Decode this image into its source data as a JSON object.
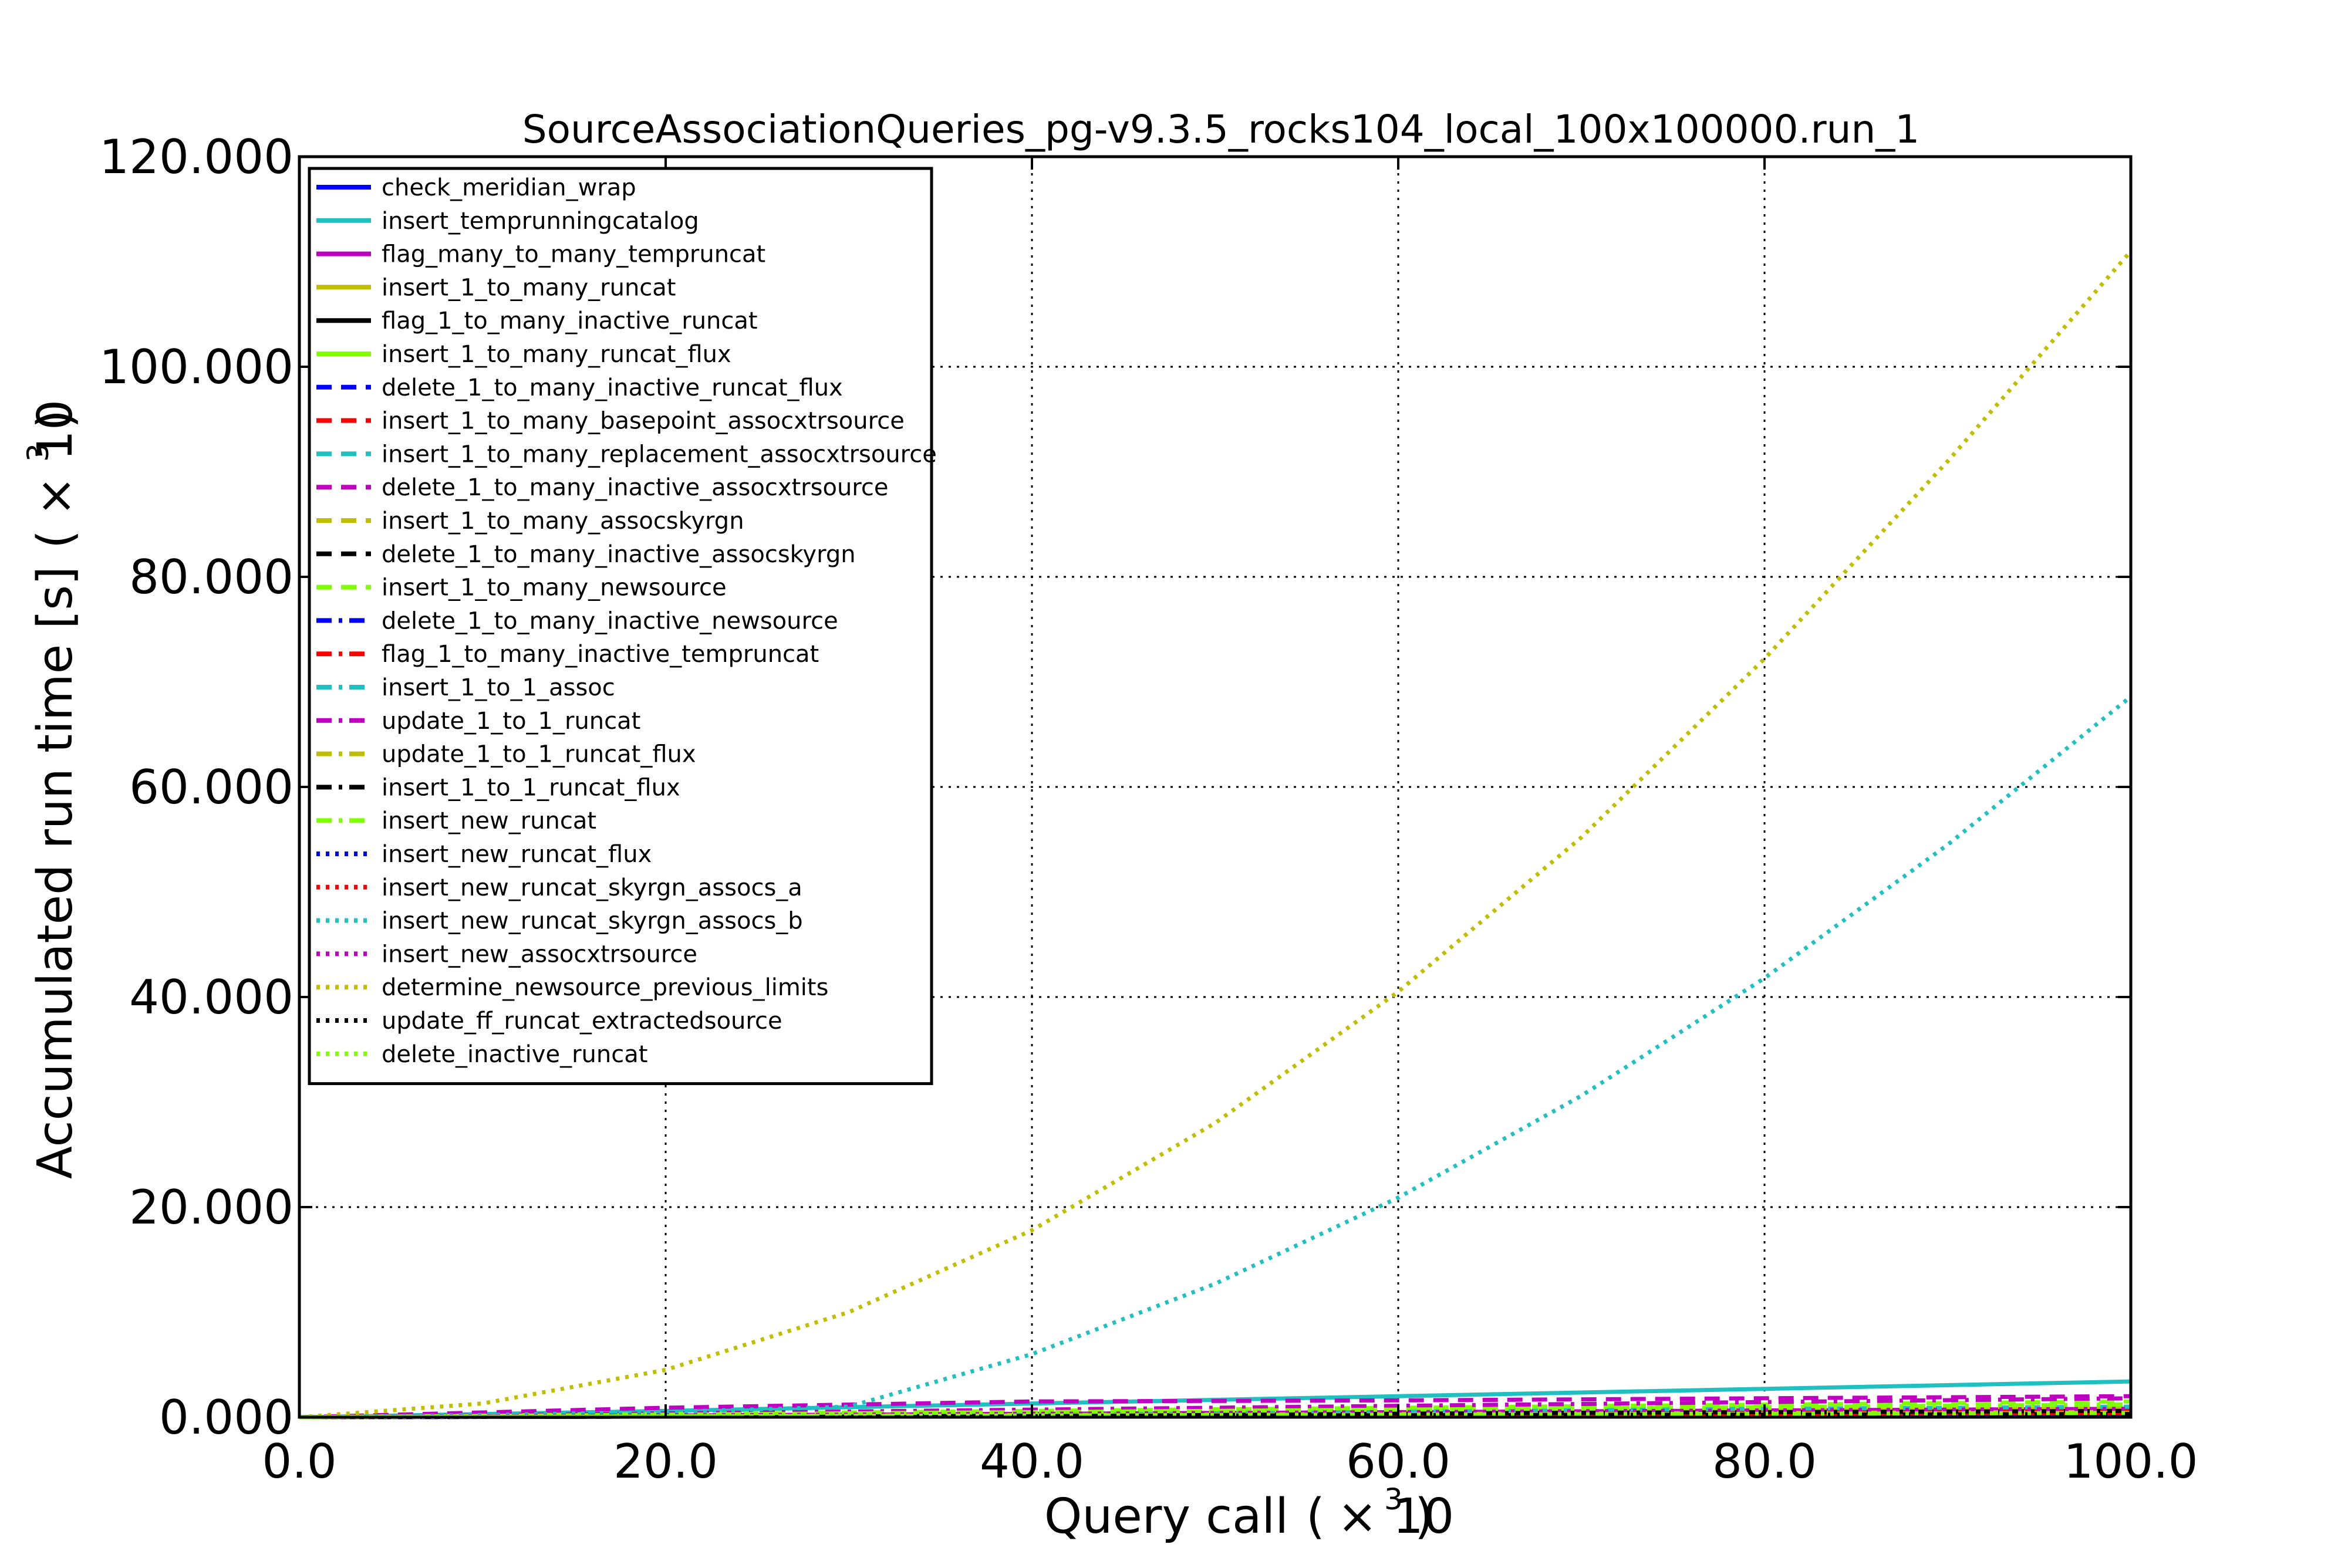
{
  "chart_data": {
    "type": "line",
    "title": "SourceAssociationQueries_pg-v9.3.5_rocks104_local_100x100000.run_1",
    "xlabel": "Query call",
    "xlabel_multiplier_base": "× 10",
    "xlabel_multiplier_exp": "3",
    "ylabel": "Accumulated run time [s]",
    "ylabel_multiplier_base": "× 10",
    "ylabel_multiplier_exp": "3",
    "xlim": [
      0,
      100
    ],
    "ylim": [
      0,
      120
    ],
    "xticks": [
      0,
      20,
      40,
      60,
      80,
      100
    ],
    "xtick_labels": [
      "0.0",
      "20.0",
      "40.0",
      "60.0",
      "80.0",
      "100.0"
    ],
    "yticks": [
      0,
      20,
      40,
      60,
      80,
      100,
      120
    ],
    "ytick_labels": [
      "0.000",
      "20.000",
      "40.000",
      "60.000",
      "80.000",
      "100.000",
      "120.000"
    ],
    "grid": true,
    "legend_position": "top-left",
    "series": [
      {
        "name": "check_meridian_wrap",
        "color": "#0000ff",
        "style": "solid",
        "x": [
          0,
          100
        ],
        "y": [
          0,
          0.3
        ]
      },
      {
        "name": "insert_temprunningcatalog",
        "color": "#20c0c0",
        "style": "solid",
        "x": [
          0,
          20,
          40,
          60,
          80,
          100
        ],
        "y": [
          0,
          0.6,
          1.3,
          2.0,
          2.7,
          3.4
        ]
      },
      {
        "name": "flag_many_to_many_tempruncat",
        "color": "#c000c0",
        "style": "solid",
        "x": [
          0,
          100
        ],
        "y": [
          0,
          0.8
        ]
      },
      {
        "name": "insert_1_to_many_runcat",
        "color": "#bfbf00",
        "style": "solid",
        "x": [
          0,
          100
        ],
        "y": [
          0,
          0.5
        ]
      },
      {
        "name": "flag_1_to_many_inactive_runcat",
        "color": "#000000",
        "style": "solid",
        "x": [
          0,
          100
        ],
        "y": [
          0,
          0.3
        ]
      },
      {
        "name": "insert_1_to_many_runcat_flux",
        "color": "#80ff00",
        "style": "solid",
        "x": [
          0,
          100
        ],
        "y": [
          0,
          0.4
        ]
      },
      {
        "name": "delete_1_to_many_inactive_runcat_flux",
        "color": "#0000ff",
        "style": "dashed",
        "x": [
          0,
          100
        ],
        "y": [
          0,
          0.3
        ]
      },
      {
        "name": "insert_1_to_many_basepoint_assocxtrsource",
        "color": "#ff0000",
        "style": "dashed",
        "x": [
          0,
          100
        ],
        "y": [
          0,
          0.6
        ]
      },
      {
        "name": "insert_1_to_many_replacement_assocxtrsource",
        "color": "#20c0c0",
        "style": "dashed",
        "x": [
          0,
          100
        ],
        "y": [
          0,
          1.0
        ]
      },
      {
        "name": "delete_1_to_many_inactive_assocxtrsource",
        "color": "#c000c0",
        "style": "dashed",
        "x": [
          0,
          20,
          40,
          60,
          80,
          100
        ],
        "y": [
          0,
          0.9,
          1.5,
          1.6,
          1.8,
          2.0
        ]
      },
      {
        "name": "insert_1_to_many_assocskyrgn",
        "color": "#bfbf00",
        "style": "dashed",
        "x": [
          0,
          100
        ],
        "y": [
          0,
          0.4
        ]
      },
      {
        "name": "delete_1_to_many_inactive_assocskyrgn",
        "color": "#000000",
        "style": "dashed",
        "x": [
          0,
          100
        ],
        "y": [
          0,
          0.3
        ]
      },
      {
        "name": "insert_1_to_many_newsource",
        "color": "#80ff00",
        "style": "dashed",
        "x": [
          0,
          100
        ],
        "y": [
          0,
          1.5
        ]
      },
      {
        "name": "delete_1_to_many_inactive_newsource",
        "color": "#0000ff",
        "style": "dashdot",
        "x": [
          0,
          100
        ],
        "y": [
          0,
          0.3
        ]
      },
      {
        "name": "flag_1_to_many_inactive_tempruncat",
        "color": "#ff0000",
        "style": "dashdot",
        "x": [
          0,
          100
        ],
        "y": [
          0,
          0.4
        ]
      },
      {
        "name": "insert_1_to_1_assoc",
        "color": "#20c0c0",
        "style": "dashdot",
        "x": [
          0,
          100
        ],
        "y": [
          0,
          1.2
        ]
      },
      {
        "name": "update_1_to_1_runcat",
        "color": "#c000c0",
        "style": "dashdot",
        "x": [
          0,
          100
        ],
        "y": [
          0,
          1.8
        ]
      },
      {
        "name": "update_1_to_1_runcat_flux",
        "color": "#bfbf00",
        "style": "dashdot",
        "x": [
          0,
          100
        ],
        "y": [
          0,
          1.0
        ]
      },
      {
        "name": "insert_1_to_1_runcat_flux",
        "color": "#000000",
        "style": "dashdot",
        "x": [
          0,
          100
        ],
        "y": [
          0,
          0.6
        ]
      },
      {
        "name": "insert_new_runcat",
        "color": "#80ff00",
        "style": "dashdot",
        "x": [
          0,
          100
        ],
        "y": [
          0,
          1.2
        ]
      },
      {
        "name": "insert_new_runcat_flux",
        "color": "#0000ff",
        "style": "dotted",
        "x": [
          0,
          100
        ],
        "y": [
          0,
          0.5
        ]
      },
      {
        "name": "insert_new_runcat_skyrgn_assocs_a",
        "color": "#ff0000",
        "style": "dotted",
        "x": [
          0,
          100
        ],
        "y": [
          0,
          0.6
        ]
      },
      {
        "name": "insert_new_runcat_skyrgn_assocs_b",
        "color": "#20c0c0",
        "style": "dotted",
        "x": [
          0,
          10,
          20,
          30,
          40,
          50,
          60,
          70,
          80,
          90,
          100
        ],
        "y": [
          0,
          0.2,
          0.5,
          1.0,
          6.0,
          12.7,
          20.9,
          30.6,
          41.8,
          54.5,
          68.6
        ]
      },
      {
        "name": "insert_new_assocxtrsource",
        "color": "#c000c0",
        "style": "dotted",
        "x": [
          0,
          100
        ],
        "y": [
          0,
          0.8
        ]
      },
      {
        "name": "determine_newsource_previous_limits",
        "color": "#bfbf00",
        "style": "dotted",
        "x": [
          0,
          10,
          20,
          30,
          40,
          50,
          60,
          70,
          80,
          90,
          100
        ],
        "y": [
          0,
          1.3,
          4.5,
          10.0,
          17.8,
          28.0,
          40.5,
          55.2,
          72.2,
          91.0,
          111.0
        ]
      },
      {
        "name": "update_ff_runcat_extractedsource",
        "color": "#000000",
        "style": "dotted",
        "x": [
          0,
          100
        ],
        "y": [
          0,
          0.3
        ]
      },
      {
        "name": "delete_inactive_runcat",
        "color": "#80ff00",
        "style": "dotted",
        "x": [
          0,
          100
        ],
        "y": [
          0,
          0.4
        ]
      }
    ]
  }
}
